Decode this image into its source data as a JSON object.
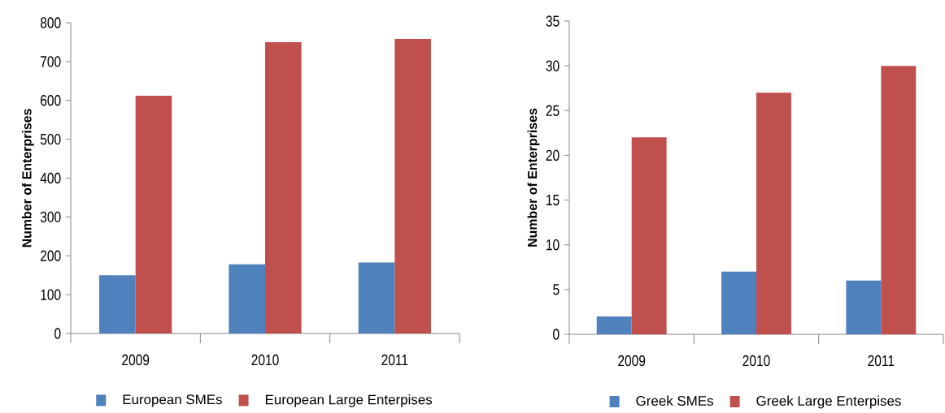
{
  "chart_data": [
    {
      "type": "bar",
      "categories": [
        "2009",
        "2010",
        "2011"
      ],
      "ylabel": "Number of Enterprises",
      "ylim": [
        0,
        800
      ],
      "yticks": [
        0,
        100,
        200,
        300,
        400,
        500,
        600,
        700,
        800
      ],
      "legend": "bottom",
      "grid": false,
      "series": [
        {
          "name": "European SMEs",
          "color": "#4f81bd",
          "values": [
            150,
            178,
            183
          ]
        },
        {
          "name": "European Large Enterpises",
          "color": "#c0504d",
          "values": [
            612,
            750,
            758
          ]
        }
      ]
    },
    {
      "type": "bar",
      "categories": [
        "2009",
        "2010",
        "2011"
      ],
      "ylabel": "Number of Enterprises",
      "ylim": [
        0,
        35
      ],
      "yticks": [
        0,
        5,
        10,
        15,
        20,
        25,
        30,
        35
      ],
      "legend": "bottom",
      "grid": false,
      "series": [
        {
          "name": "Greek SMEs",
          "color": "#4f81bd",
          "values": [
            2,
            7,
            6
          ]
        },
        {
          "name": "Greek Large Enterpises",
          "color": "#c0504d",
          "values": [
            22,
            27,
            30
          ]
        }
      ]
    }
  ]
}
